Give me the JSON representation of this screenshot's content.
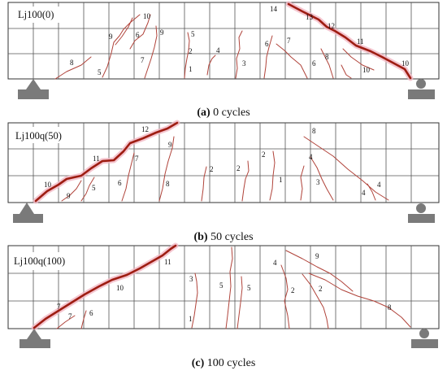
{
  "panels": [
    {
      "title": "Lj100(0)",
      "caption_letter": "(a)",
      "caption_text": " 0 cycles",
      "crack_labels": [
        "14",
        "13",
        "12",
        "11",
        "10",
        "10",
        "9",
        "9",
        "8",
        "7",
        "7",
        "6",
        "6",
        "6",
        "5",
        "5",
        "4",
        "3",
        "2",
        "1",
        "8",
        "10"
      ]
    },
    {
      "title": "Lj100q(50)",
      "caption_letter": "(b)",
      "caption_text": " 50 cycles",
      "crack_labels": [
        "12",
        "11",
        "10",
        "9",
        "9",
        "8",
        "7",
        "6",
        "5",
        "2",
        "2",
        "2",
        "1",
        "8",
        "4",
        "3",
        "4",
        "4"
      ]
    },
    {
      "title": "Lj100q(100)",
      "caption_letter": "(c)",
      "caption_text": " 100 cycles",
      "crack_labels": [
        "11",
        "10",
        "7",
        "7",
        "6",
        "3",
        "1",
        "5",
        "5",
        "4",
        "9",
        "2",
        "2",
        "8"
      ]
    }
  ],
  "colors": {
    "main_crack": "#9e1d12",
    "crack": "#b0433a",
    "highlight": "#f3b8c4",
    "support": "#7a7a7a",
    "grid": "#555555"
  }
}
